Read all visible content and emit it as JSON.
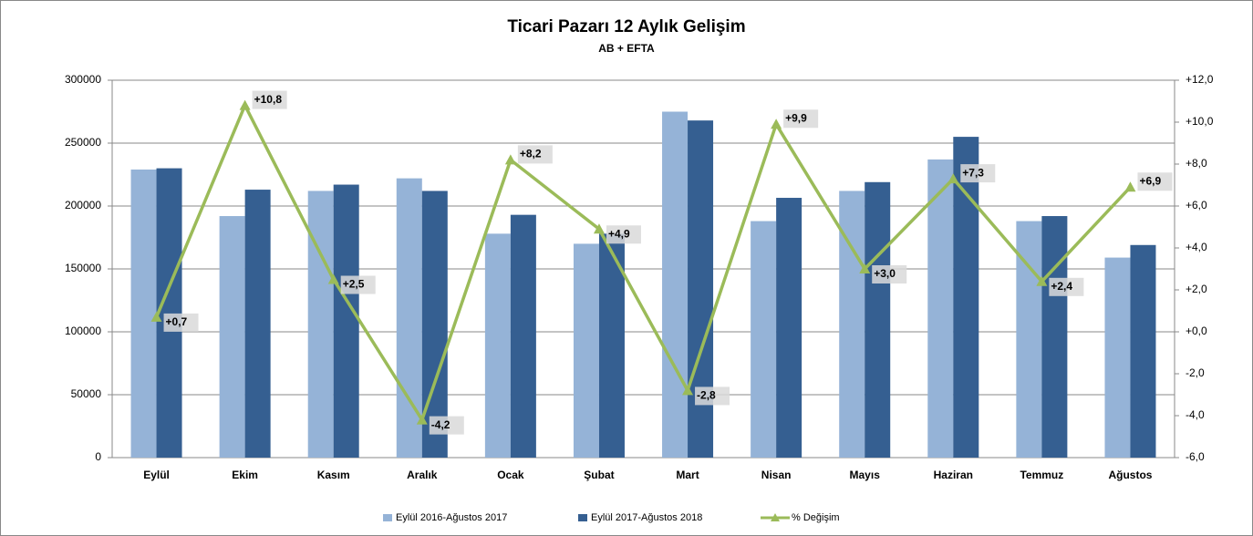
{
  "chart_data": {
    "type": "bar",
    "title": "Ticari Pazarı 12 Aylık Gelişim",
    "subtitle": "AB + EFTA",
    "categories": [
      "Eylül",
      "Ekim",
      "Kasım",
      "Aralık",
      "Ocak",
      "Şubat",
      "Mart",
      "Nisan",
      "Mayıs",
      "Haziran",
      "Temmuz",
      "Ağustos"
    ],
    "series": [
      {
        "name": "Eylül 2016-Ağustos 2017",
        "type": "bar",
        "color": "#95b3d7",
        "values": [
          229000,
          192000,
          212000,
          222000,
          178000,
          170000,
          275000,
          188000,
          212000,
          237000,
          188000,
          159000
        ]
      },
      {
        "name": "Eylül 2017-Ağustos 2018",
        "type": "bar",
        "color": "#355f91",
        "values": [
          230000,
          213000,
          217000,
          212000,
          193000,
          178000,
          268000,
          206500,
          219000,
          255000,
          192000,
          169000
        ]
      },
      {
        "name": "% Değişim",
        "type": "line",
        "axis": "y2",
        "color": "#9bbb59",
        "values": [
          0.7,
          10.8,
          2.5,
          -4.2,
          8.2,
          4.9,
          -2.8,
          9.9,
          3.0,
          7.3,
          2.4,
          6.9
        ],
        "value_labels": [
          "+0,7",
          "+10,8",
          "+2,5",
          "-4,2",
          "+8,2",
          "+4,9",
          "-2,8",
          "+9,9",
          "+3,0",
          "+7,3",
          "+2,4",
          "+6,9"
        ]
      }
    ],
    "ylim": [
      0,
      300000
    ],
    "yticks": [
      0,
      50000,
      100000,
      150000,
      200000,
      250000,
      300000
    ],
    "y2lim": [
      -6,
      12
    ],
    "y2ticks": [
      {
        "value": -6,
        "label": "-6,0"
      },
      {
        "value": -4,
        "label": "-4,0"
      },
      {
        "value": -2,
        "label": "-2,0"
      },
      {
        "value": 0,
        "label": "+0,0"
      },
      {
        "value": 2,
        "label": "+2,0"
      },
      {
        "value": 4,
        "label": "+4,0"
      },
      {
        "value": 6,
        "label": "+6,0"
      },
      {
        "value": 8,
        "label": "+8,0"
      },
      {
        "value": 10,
        "label": "+10,0"
      },
      {
        "value": 12,
        "label": "+12,0"
      }
    ],
    "grid": true,
    "legend": "bottom"
  }
}
